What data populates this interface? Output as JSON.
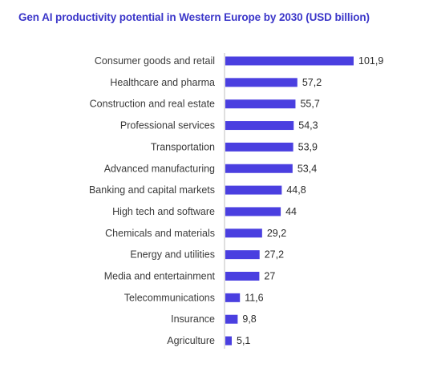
{
  "chart_data": {
    "type": "bar",
    "orientation": "horizontal",
    "title": "Gen AI productivity potential in Western Europe by 2030 (USD billion)",
    "xlabel": "",
    "ylabel": "",
    "xlim": [
      0,
      101.9
    ],
    "grid": false,
    "categories": [
      "Consumer goods and retail",
      "Healthcare and pharma",
      "Construction and real estate",
      "Professional services",
      "Transportation",
      "Advanced manufacturing",
      "Banking and capital markets",
      "High tech and software",
      "Chemicals and materials",
      "Energy and utilities",
      "Media and entertainment",
      "Telecommunications",
      "Insurance",
      "Agriculture"
    ],
    "values": [
      101.9,
      57.2,
      55.7,
      54.3,
      53.9,
      53.4,
      44.8,
      44,
      29.2,
      27.2,
      27,
      11.6,
      9.8,
      5.1
    ],
    "value_labels": [
      "101,9",
      "57,2",
      "55,7",
      "54,3",
      "53,9",
      "53,4",
      "44,8",
      "44",
      "29,2",
      "27,2",
      "27",
      "11,6",
      "9,8",
      "5,1"
    ],
    "colors": {
      "bar": "#4a3fe0",
      "title": "#3b36c9",
      "axis": "#bfbfbf"
    }
  }
}
